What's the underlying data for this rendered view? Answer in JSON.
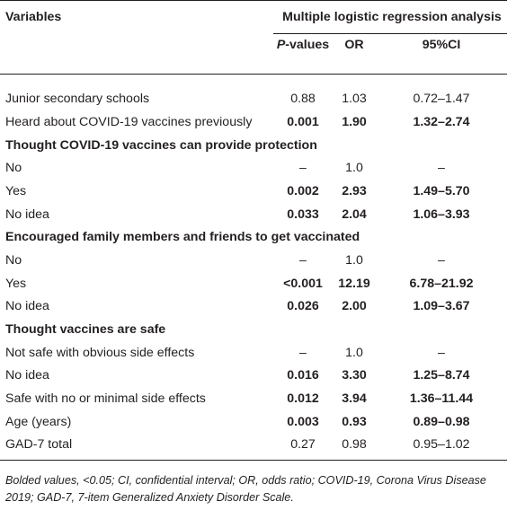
{
  "header": {
    "variables_label": "Variables",
    "analysis_label": "Multiple logistic regression analysis",
    "p_label": "P",
    "p_suffix": "-values",
    "or_label": "OR",
    "ci_label": "95%CI"
  },
  "rows": [
    {
      "type": "data",
      "label": "Junior secondary schools",
      "p": "0.88",
      "or": "1.03",
      "ci": "0.72–1.47",
      "bold": false
    },
    {
      "type": "data",
      "label": "Heard about COVID-19 vaccines previously",
      "p": "0.001",
      "or": "1.90",
      "ci": "1.32–2.74",
      "bold": true
    },
    {
      "type": "group",
      "label": "Thought COVID-19 vaccines can provide protection"
    },
    {
      "type": "data",
      "label": "No",
      "p": "–",
      "or": "1.0",
      "ci": "–",
      "bold": false
    },
    {
      "type": "data",
      "label": "Yes",
      "p": "0.002",
      "or": "2.93",
      "ci": "1.49–5.70",
      "bold": true
    },
    {
      "type": "data",
      "label": "No idea",
      "p": "0.033",
      "or": "2.04",
      "ci": "1.06–3.93",
      "bold": true
    },
    {
      "type": "group",
      "label": "Encouraged family members and friends to get vaccinated"
    },
    {
      "type": "data",
      "label": "No",
      "p": "–",
      "or": "1.0",
      "ci": "–",
      "bold": false
    },
    {
      "type": "data",
      "label": "Yes",
      "p": "<0.001",
      "or": "12.19",
      "ci": "6.78–21.92",
      "bold": true
    },
    {
      "type": "data",
      "label": "No idea",
      "p": "0.026",
      "or": "2.00",
      "ci": "1.09–3.67",
      "bold": true
    },
    {
      "type": "group",
      "label": "Thought vaccines are safe"
    },
    {
      "type": "data",
      "label": "Not safe with obvious side effects",
      "p": "–",
      "or": "1.0",
      "ci": "–",
      "bold": false
    },
    {
      "type": "data",
      "label": "No idea",
      "p": "0.016",
      "or": "3.30",
      "ci": "1.25–8.74",
      "bold": true
    },
    {
      "type": "data",
      "label": "Safe with no or minimal side effects",
      "p": "0.012",
      "or": "3.94",
      "ci": "1.36–11.44",
      "bold": true
    },
    {
      "type": "data",
      "label": "Age (years)",
      "p": "0.003",
      "or": "0.93",
      "ci": "0.89–0.98",
      "bold": true
    },
    {
      "type": "data",
      "label": "GAD-7 total",
      "p": "0.27",
      "or": "0.98",
      "ci": "0.95–1.02",
      "bold": false
    }
  ],
  "footnote": "Bolded values, <0.05; CI, confidential interval; OR, odds ratio; COVID-19, Corona Virus Disease 2019; GAD-7, 7-item Generalized Anxiety Disorder Scale."
}
